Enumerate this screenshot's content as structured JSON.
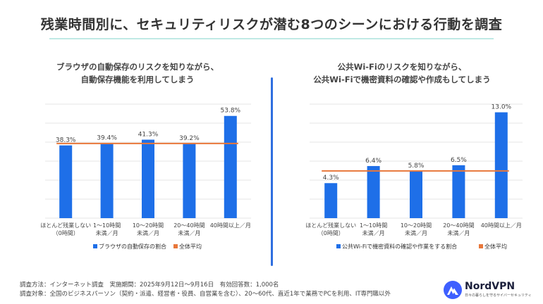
{
  "title": "残業時間別に、セキュリティリスクが潜む8つのシーンにおける行動を調査",
  "colors": {
    "bar": "#1e6fe8",
    "avg": "#e8773a",
    "accent_rule": "#bfe9e4",
    "divider": "#2f6fe0"
  },
  "chart_data": [
    {
      "type": "bar",
      "title_lines": [
        "ブラウザの自動保存のリスクを知りながら、",
        "自動保存機能を利用してしまう"
      ],
      "categories": [
        [
          "ほとんど残業しない",
          "（0時間）"
        ],
        [
          "1～10時間",
          "未満／月"
        ],
        [
          "10～20時間",
          "未満／月"
        ],
        [
          "20～40時間",
          "未満／月"
        ],
        [
          "40時間以上／月"
        ]
      ],
      "value_labels": [
        "38.3%",
        "39.4%",
        "41.3%",
        "39.2%",
        "53.8%"
      ],
      "values": [
        38.3,
        39.4,
        41.3,
        39.2,
        53.8
      ],
      "average": 39.3,
      "ylim": [
        0,
        60
      ],
      "grid": true,
      "legend": [
        {
          "label": "ブラウザの自動保存の割合",
          "color": "#1e6fe8"
        },
        {
          "label": "全体平均",
          "color": "#e8773a"
        }
      ]
    },
    {
      "type": "bar",
      "title_lines": [
        "公共Wi-Fiのリスクを知りながら、",
        "公共Wi-Fiで機密資料の確認や作成もしてしまう"
      ],
      "categories": [
        [
          "ほとんど残業しない",
          "（0時間）"
        ],
        [
          "1～10時間",
          "未満／月"
        ],
        [
          "10～20時間",
          "未満／月"
        ],
        [
          "20～40時間",
          "未満／月"
        ],
        [
          "40時間以上／月"
        ]
      ],
      "value_labels": [
        "4.3%",
        "6.4%",
        "5.8%",
        "6.5%",
        "13.0%"
      ],
      "values": [
        4.3,
        6.4,
        5.8,
        6.5,
        13.0
      ],
      "average": 5.8,
      "ylim": [
        0,
        14
      ],
      "grid": true,
      "legend": [
        {
          "label": "公共Wi-Fiで機密資料の確認や作業をする割合",
          "color": "#1e6fe8"
        },
        {
          "label": "全体平均",
          "color": "#e8773a"
        }
      ]
    }
  ],
  "footer": {
    "line1": "調査方法：インターネット調査　実施期間：2025年9月12日～9月16日　有効回答数：1,000名",
    "line2": "調査対象：全国のビジネスパーソン（契約・派遣、経営者・役員、自営業を含む）、20～60代、直近1年で業務でPCを利用、IT専門職以外"
  },
  "logo": {
    "name": "NordVPN",
    "tagline": "日々の暮らしを守るサイバーセキュリティ",
    "icon": "nordvpn-mountain-icon"
  }
}
